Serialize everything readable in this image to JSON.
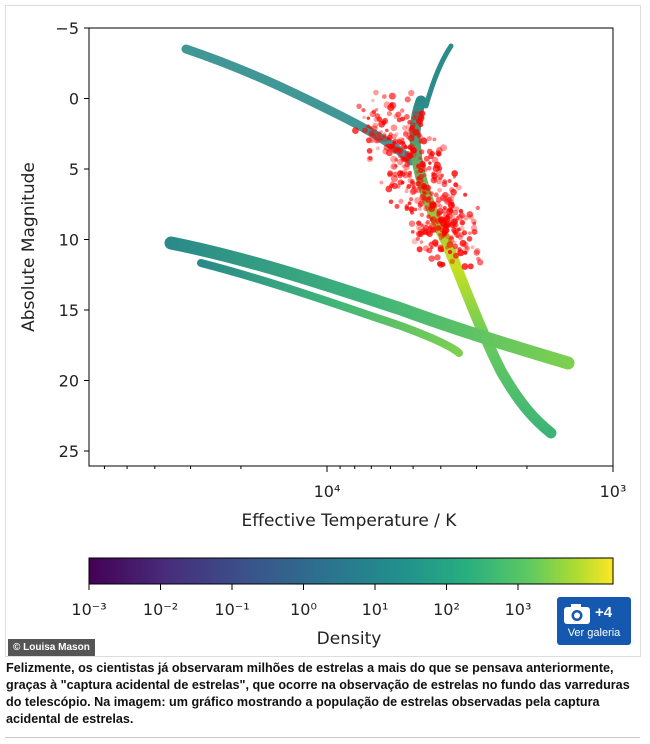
{
  "figure": {
    "y_axis_label": "Absolute Magnitude",
    "x_axis_label": "Effective Temperature / K",
    "y_ticks": [
      "−5",
      "0",
      "5",
      "10",
      "15",
      "20",
      "25"
    ],
    "x_ticks": [
      "10⁴",
      "10³"
    ],
    "colorbar_label": "Density",
    "colorbar_ticks": [
      "10⁻³",
      "10⁻²",
      "10⁻¹",
      "10⁰",
      "10¹",
      "10²",
      "10³"
    ]
  },
  "credit": "© Louisa Mason",
  "gallery": {
    "count": "+4",
    "label": "Ver galeria"
  },
  "caption": "Felizmente, os cientistas já observaram milhões de estrelas a mais do que se pensava anteriormente, graças à \"captura acidental de estrelas\", que ocorre na observação de estrelas no fundo das varreduras do telescópio. Na imagem: um gráfico mostrando a população de estrelas observadas pela captura acidental de estrelas."
}
